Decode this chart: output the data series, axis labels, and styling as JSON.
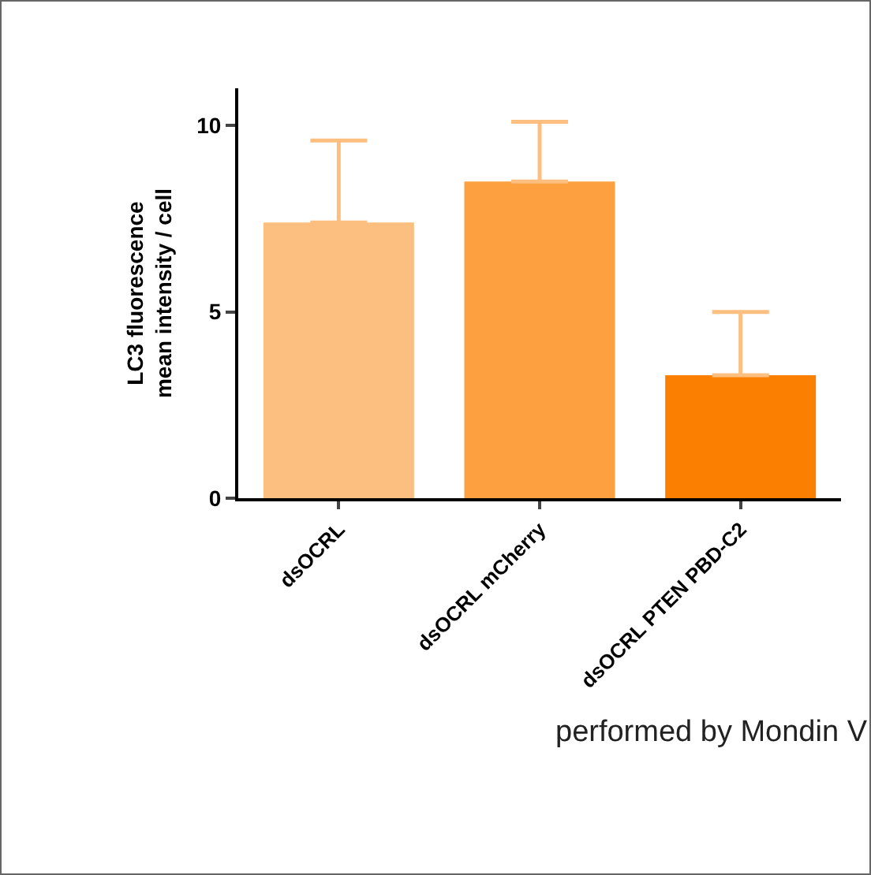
{
  "chart_data": {
    "type": "bar",
    "ylabel": "LC3 fluorescence\nmean intensity / cell",
    "categories": [
      "dsOCRL",
      "dsOCRL mCherry",
      "dsOCRL PTEN PBD-C2"
    ],
    "values": [
      7.4,
      8.5,
      3.3
    ],
    "colors": [
      "#fdbf80",
      "#fca040",
      "#fb7f00"
    ],
    "errors": [
      [
        7.4,
        9.6
      ],
      [
        8.5,
        10.1
      ],
      [
        3.3,
        5.0
      ]
    ],
    "ylim": [
      0,
      11
    ],
    "yticks": [
      0,
      5,
      10
    ],
    "grid": false,
    "annotations": [
      "performed by Mondin V"
    ]
  }
}
